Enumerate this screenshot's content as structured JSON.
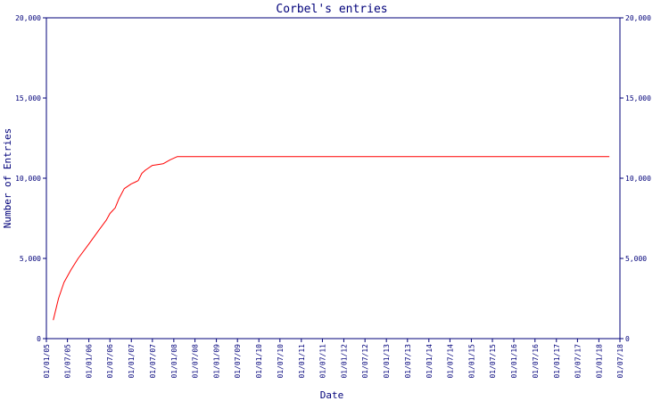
{
  "chart_data": {
    "type": "line",
    "title": "Corbel's entries",
    "xlabel": "Date",
    "ylabel": "Number of Entries",
    "ylim": [
      0,
      20000
    ],
    "xlim": [
      "2005-01-01",
      "2018-07-01"
    ],
    "yticks": [
      0,
      5000,
      10000,
      15000,
      20000
    ],
    "ytick_labels": [
      "0",
      "5,000",
      "10,000",
      "15,000",
      "20,000"
    ],
    "xticks": [
      "2005-01-01",
      "2005-07-01",
      "2006-01-01",
      "2006-07-01",
      "2007-01-01",
      "2007-07-01",
      "2008-01-01",
      "2008-07-01",
      "2009-01-01",
      "2009-07-01",
      "2010-01-01",
      "2010-07-01",
      "2011-01-01",
      "2011-07-01",
      "2012-01-01",
      "2012-07-01",
      "2013-01-01",
      "2013-07-01",
      "2014-01-01",
      "2014-07-01",
      "2015-01-01",
      "2015-07-01",
      "2016-01-01",
      "2016-07-01",
      "2017-01-01",
      "2017-07-01",
      "2018-01-01",
      "2018-07-01"
    ],
    "xtick_labels": [
      "01/01/05",
      "01/07/05",
      "01/01/06",
      "01/07/06",
      "01/01/07",
      "01/07/07",
      "01/01/08",
      "01/07/08",
      "01/01/09",
      "01/07/09",
      "01/01/10",
      "01/07/10",
      "01/01/11",
      "01/07/11",
      "01/01/12",
      "01/07/12",
      "01/01/13",
      "01/07/13",
      "01/01/14",
      "01/07/14",
      "01/01/15",
      "01/07/15",
      "01/01/16",
      "01/07/16",
      "01/01/17",
      "01/07/17",
      "01/01/18",
      "01/07/18"
    ],
    "grid": false,
    "secondary_y_axis": true,
    "colors": {
      "line": "#ff0000",
      "axis": "#00007a",
      "text": "#00007a"
    },
    "series": [
      {
        "x": [
          "2005-03-01",
          "2005-04-15",
          "2005-06-01",
          "2005-08-01",
          "2005-10-01",
          "2006-01-01",
          "2006-04-01",
          "2006-06-01",
          "2006-07-01",
          "2006-08-15",
          "2006-09-15",
          "2006-11-01",
          "2007-01-01",
          "2007-02-01",
          "2007-03-01",
          "2007-04-01",
          "2007-05-01",
          "2007-07-01",
          "2007-08-15",
          "2007-10-01",
          "2007-12-01",
          "2008-02-01",
          "2008-06-01",
          "2009-01-01",
          "2010-01-01",
          "2011-01-01",
          "2012-01-01",
          "2013-01-01",
          "2014-01-01",
          "2015-01-01",
          "2016-01-01",
          "2017-01-01",
          "2018-01-01",
          "2018-04-01"
        ],
        "y": [
          1150,
          2500,
          3500,
          4300,
          5000,
          5900,
          6800,
          7400,
          7800,
          8150,
          8700,
          9350,
          9650,
          9750,
          9850,
          10300,
          10500,
          10800,
          10850,
          10900,
          11150,
          11350,
          11350,
          11350,
          11350,
          11350,
          11350,
          11350,
          11350,
          11350,
          11350,
          11350,
          11350,
          11350
        ]
      }
    ]
  }
}
